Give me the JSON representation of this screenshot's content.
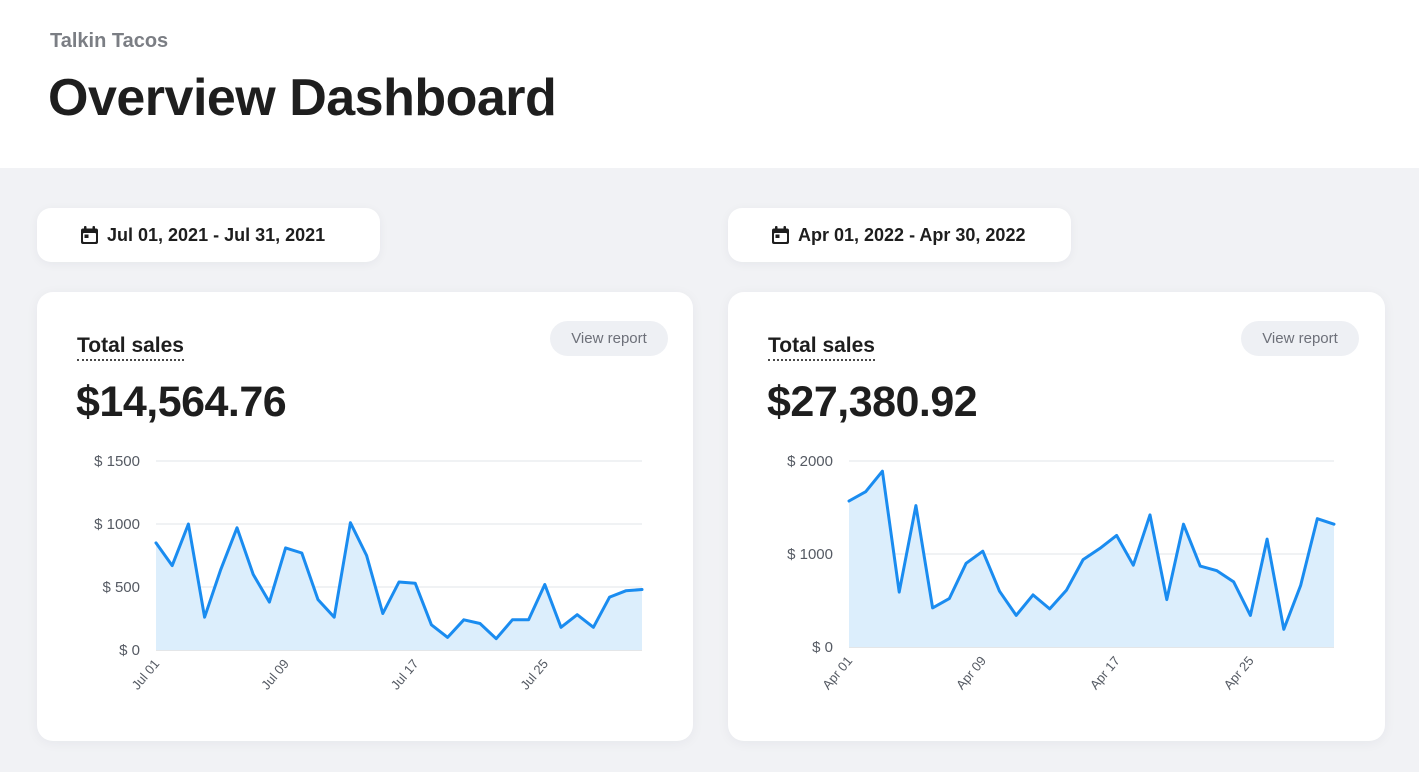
{
  "header": {
    "brand": "Talkin Tacos",
    "title": "Overview Dashboard"
  },
  "colors": {
    "line": "#1a8cf0",
    "area": "#dceefc",
    "grid": "#e2e4e8",
    "page_bg": "#f1f2f5"
  },
  "panels": [
    {
      "date_range": "Jul 01, 2021 - Jul 31, 2021",
      "label": "Total sales",
      "value": "$14,564.76",
      "view_report": "View report"
    },
    {
      "date_range": "Apr 01, 2022 - Apr 30, 2022",
      "label": "Total sales",
      "value": "$27,380.92",
      "view_report": "View report"
    }
  ],
  "chart_data": [
    {
      "type": "area",
      "x_start": "Jul 01",
      "x_tick_labels": [
        "Jul 01",
        "Jul 09",
        "Jul 17",
        "Jul 25"
      ],
      "y_tick_labels": [
        "$ 0",
        "$ 500",
        "$ 1000",
        "$ 1500"
      ],
      "y_ticks": [
        0,
        500,
        1000,
        1500
      ],
      "ylim": [
        0,
        1500
      ],
      "grid": true,
      "values": [
        850,
        670,
        1000,
        260,
        640,
        970,
        600,
        380,
        810,
        770,
        400,
        260,
        1010,
        750,
        290,
        540,
        530,
        200,
        100,
        240,
        210,
        90,
        240,
        240,
        520,
        180,
        280,
        180,
        420,
        470,
        480
      ]
    },
    {
      "type": "area",
      "x_start": "Apr 01",
      "x_tick_labels": [
        "Apr 01",
        "Apr 09",
        "Apr 17",
        "Apr 25"
      ],
      "y_tick_labels": [
        "$ 0",
        "$ 1000",
        "$ 2000"
      ],
      "y_ticks": [
        0,
        1000,
        2000
      ],
      "ylim": [
        0,
        2000
      ],
      "grid": true,
      "values": [
        1570,
        1670,
        1890,
        590,
        1520,
        420,
        520,
        900,
        1030,
        600,
        340,
        560,
        410,
        610,
        940,
        1060,
        1200,
        880,
        1420,
        510,
        1320,
        870,
        820,
        700,
        340,
        1160,
        190,
        660,
        1380,
        1320
      ]
    }
  ]
}
